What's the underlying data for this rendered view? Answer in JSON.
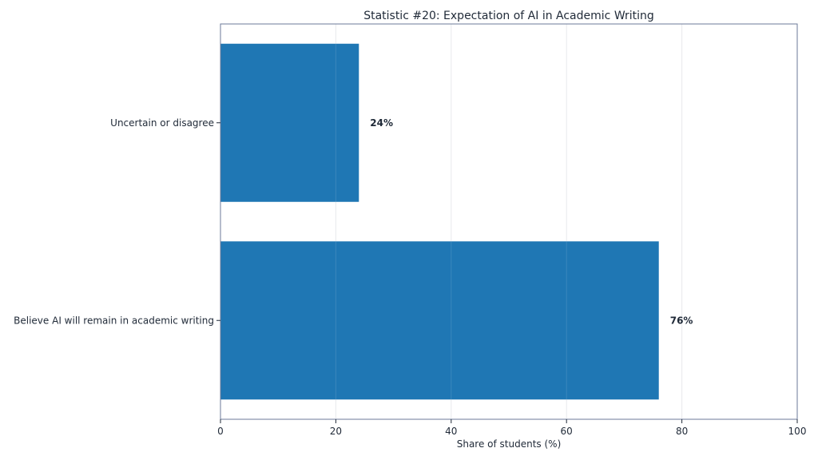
{
  "chart_data": {
    "type": "bar",
    "orientation": "horizontal",
    "title": "Statistic #20: Expectation of AI in Academic Writing",
    "xlabel": "Share of students (%)",
    "ylabel": "",
    "categories": [
      "Uncertain or disagree",
      "Believe AI will remain in academic writing"
    ],
    "values": [
      24,
      76
    ],
    "data_labels": [
      "24%",
      "76%"
    ],
    "xlim": [
      0,
      100
    ],
    "xticks": [
      0,
      20,
      40,
      60,
      80,
      100
    ],
    "grid": "vertical",
    "legend": "none",
    "colors": {
      "bar": "#1f77b4",
      "axes": "#6b7a99",
      "grid": "#e5e7eb",
      "text": "#1f2937"
    }
  }
}
